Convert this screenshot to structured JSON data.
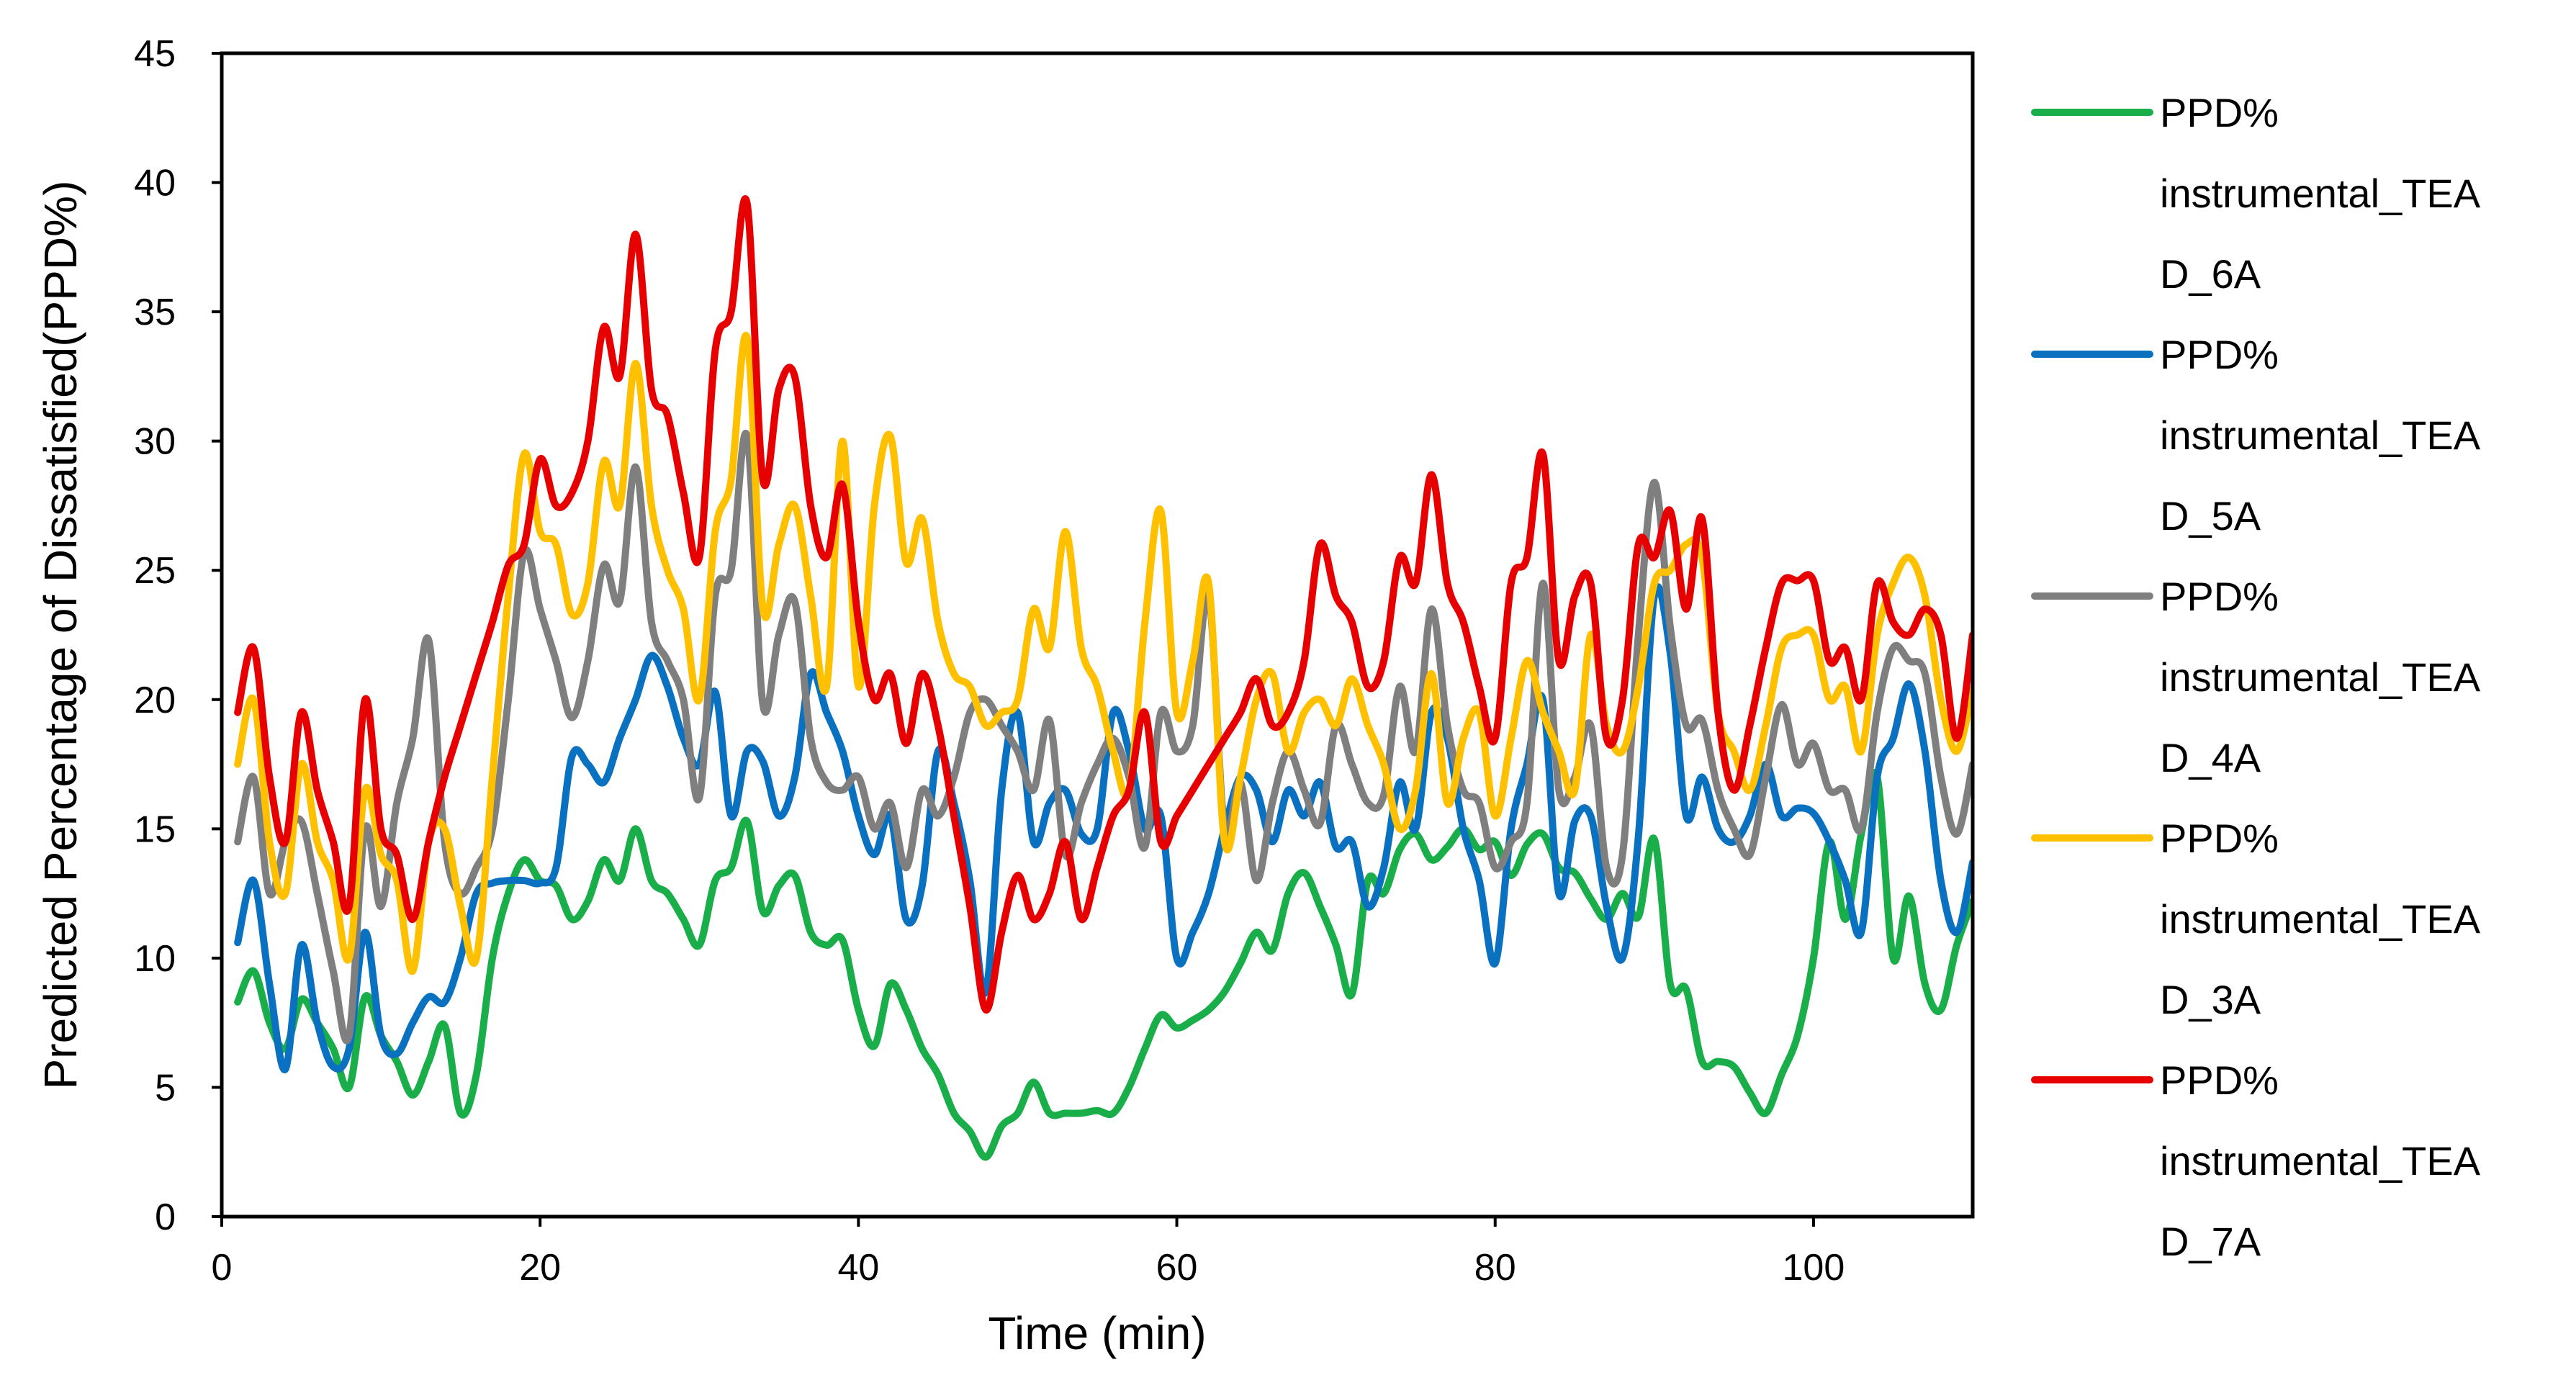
{
  "chart_data": {
    "type": "line",
    "title": "",
    "xlabel": "Time (min)",
    "ylabel": "Predicted Percentage of Dissatisfied(PPD%)",
    "xlim": [
      0,
      110
    ],
    "ylim": [
      0,
      45
    ],
    "xticks": [
      0,
      20,
      40,
      60,
      80,
      100
    ],
    "yticks": [
      0,
      5,
      10,
      15,
      20,
      25,
      30,
      35,
      40,
      45
    ],
    "grid": false,
    "legend_position": "right",
    "series": [
      {
        "name_lines": [
          "PPD%",
          "instrumental_TEA",
          "D_6A"
        ],
        "color": "#1AAE4A",
        "x": [
          1,
          2,
          3,
          4,
          5,
          6,
          7,
          8,
          9,
          10,
          11,
          12,
          13,
          14,
          15,
          16,
          17,
          18,
          19,
          20,
          21,
          22,
          23,
          24,
          25,
          26,
          27,
          28,
          29,
          30,
          31,
          32,
          33,
          34,
          35,
          36,
          37,
          38,
          39,
          40,
          41,
          42,
          43,
          44,
          45,
          46,
          47,
          48,
          49,
          50,
          51,
          52,
          53,
          54,
          55,
          56,
          57,
          58,
          59,
          60,
          61,
          62,
          63,
          64,
          65,
          66,
          67,
          68,
          69,
          70,
          71,
          72,
          73,
          74,
          75,
          76,
          77,
          78,
          79,
          80,
          81,
          82,
          83,
          84,
          85,
          86,
          87,
          88,
          89,
          90,
          91,
          92,
          93,
          94,
          95,
          96,
          97,
          98,
          99,
          100,
          101,
          102,
          103,
          104,
          105,
          106,
          107,
          108,
          109,
          110
        ],
        "values": [
          8.3,
          9.5,
          7.5,
          6.5,
          8.4,
          7.5,
          6.5,
          5.0,
          8.5,
          7.0,
          6.0,
          4.7,
          6.0,
          7.4,
          4.0,
          5.5,
          10.0,
          12.5,
          13.8,
          13.0,
          12.8,
          11.5,
          12.2,
          13.8,
          13.0,
          15.0,
          13.0,
          12.5,
          11.5,
          10.5,
          13.0,
          13.5,
          15.3,
          11.8,
          12.8,
          13.2,
          11.0,
          10.5,
          10.7,
          8.0,
          6.6,
          9.0,
          8.0,
          6.5,
          5.5,
          4.0,
          3.3,
          2.3,
          3.5,
          4.0,
          5.2,
          4.0,
          4.0,
          4.0,
          4.1,
          4.0,
          5.0,
          6.5,
          7.8,
          7.3,
          7.6,
          8.0,
          8.7,
          9.8,
          11.0,
          10.3,
          12.5,
          13.3,
          12.0,
          10.5,
          8.6,
          13.0,
          12.5,
          14.2,
          14.8,
          13.8,
          14.3,
          15.0,
          14.2,
          14.5,
          13.2,
          14.4,
          14.8,
          13.5,
          13.3,
          12.3,
          11.5,
          12.5,
          11.6,
          14.6,
          9.0,
          8.8,
          6.0,
          6.0,
          5.8,
          4.8,
          4.0,
          5.5,
          7.0,
          10.0,
          14.5,
          11.5,
          14.8,
          17.0,
          10.0,
          12.4,
          9.0,
          8.0,
          10.5,
          12.2
        ]
      },
      {
        "name_lines": [
          "PPD%",
          "instrumental_TEA",
          "D_5A"
        ],
        "color": "#0A70C0",
        "x": [
          1,
          2,
          3,
          4,
          5,
          6,
          7,
          8,
          9,
          10,
          11,
          12,
          13,
          14,
          15,
          16,
          17,
          18,
          19,
          20,
          21,
          22,
          23,
          24,
          25,
          26,
          27,
          28,
          29,
          30,
          31,
          32,
          33,
          34,
          35,
          36,
          37,
          38,
          39,
          40,
          41,
          42,
          43,
          44,
          45,
          46,
          47,
          48,
          49,
          50,
          51,
          52,
          53,
          54,
          55,
          56,
          57,
          58,
          59,
          60,
          61,
          62,
          63,
          64,
          65,
          66,
          67,
          68,
          69,
          70,
          71,
          72,
          73,
          74,
          75,
          76,
          77,
          78,
          79,
          80,
          81,
          82,
          83,
          84,
          85,
          86,
          87,
          88,
          89,
          90,
          91,
          92,
          93,
          94,
          95,
          96,
          97,
          98,
          99,
          100,
          101,
          102,
          103,
          104,
          105,
          106,
          107,
          108,
          109,
          110
        ],
        "values": [
          10.6,
          13.0,
          9.0,
          5.7,
          10.5,
          7.5,
          5.8,
          6.5,
          11.0,
          7.0,
          6.3,
          7.5,
          8.5,
          8.3,
          10.0,
          12.5,
          12.9,
          13.0,
          13.0,
          12.9,
          13.5,
          17.8,
          17.5,
          16.8,
          18.5,
          20.0,
          21.7,
          20.5,
          18.5,
          17.5,
          20.3,
          15.5,
          18.0,
          17.6,
          15.5,
          17.0,
          21.0,
          19.5,
          18.0,
          15.5,
          14.0,
          15.5,
          11.5,
          12.8,
          18.0,
          16.0,
          13.0,
          8.7,
          16.5,
          19.5,
          14.5,
          16.0,
          16.5,
          14.8,
          15.0,
          19.5,
          18.0,
          15.0,
          15.5,
          10.0,
          11.0,
          12.5,
          15.0,
          17.0,
          16.5,
          14.5,
          16.5,
          15.5,
          16.8,
          14.3,
          14.5,
          12.0,
          13.5,
          16.8,
          15.0,
          19.5,
          18.5,
          15.0,
          13.0,
          9.8,
          15.0,
          17.5,
          20.0,
          12.5,
          15.3,
          15.5,
          12.0,
          10.0,
          14.7,
          24.0,
          21.8,
          15.5,
          17.0,
          15.0,
          14.5,
          15.5,
          17.5,
          15.5,
          15.8,
          15.6,
          14.5,
          13.0,
          11.0,
          17.0,
          18.5,
          20.6,
          18.0,
          13.0,
          11.0,
          13.7
        ]
      },
      {
        "name_lines": [
          "PPD%",
          "instrumental_TEA",
          "D_4A"
        ],
        "color": "#7F7F7F",
        "x": [
          1,
          2,
          3,
          4,
          5,
          6,
          7,
          8,
          9,
          10,
          11,
          12,
          13,
          14,
          15,
          16,
          17,
          18,
          19,
          20,
          21,
          22,
          23,
          24,
          25,
          26,
          27,
          28,
          29,
          30,
          31,
          32,
          33,
          34,
          35,
          36,
          37,
          38,
          39,
          40,
          41,
          42,
          43,
          44,
          45,
          46,
          47,
          48,
          49,
          50,
          51,
          52,
          53,
          54,
          55,
          56,
          57,
          58,
          59,
          60,
          61,
          62,
          63,
          64,
          65,
          66,
          67,
          68,
          69,
          70,
          71,
          72,
          73,
          74,
          75,
          76,
          77,
          78,
          79,
          80,
          81,
          82,
          83,
          84,
          85,
          86,
          87,
          88,
          89,
          90,
          91,
          92,
          93,
          94,
          95,
          96,
          97,
          98,
          99,
          100,
          101,
          102,
          103,
          104,
          105,
          106,
          107,
          108,
          109,
          110
        ],
        "values": [
          14.5,
          17.0,
          12.5,
          14.5,
          15.3,
          12.5,
          9.5,
          7.0,
          15.0,
          12.0,
          16.0,
          18.5,
          22.3,
          14.5,
          12.5,
          13.5,
          15.0,
          20.0,
          25.7,
          23.5,
          21.5,
          19.3,
          21.5,
          25.2,
          23.8,
          29.0,
          23.0,
          21.5,
          20.0,
          16.2,
          24.0,
          25.0,
          30.2,
          19.8,
          22.5,
          23.8,
          18.5,
          16.8,
          16.5,
          17.0,
          15.0,
          16.0,
          13.5,
          16.5,
          15.5,
          17.0,
          19.5,
          20.0,
          19.0,
          18.0,
          16.5,
          19.2,
          14.0,
          16.0,
          17.5,
          18.5,
          17.0,
          14.3,
          19.5,
          18.0,
          19.0,
          24.0,
          15.0,
          16.8,
          13.0,
          16.0,
          18.0,
          16.5,
          15.2,
          19.0,
          17.5,
          16.0,
          16.3,
          20.5,
          18.0,
          23.5,
          19.0,
          16.5,
          16.0,
          13.5,
          14.5,
          16.0,
          24.5,
          16.5,
          17.0,
          19.0,
          13.5,
          14.0,
          22.5,
          28.4,
          22.8,
          19.0,
          19.2,
          16.5,
          15.0,
          14.0,
          17.0,
          19.8,
          17.5,
          18.3,
          16.5,
          16.5,
          15.0,
          19.5,
          22.0,
          21.5,
          21.0,
          17.0,
          14.8,
          17.5
        ]
      },
      {
        "name_lines": [
          "PPD%",
          "instrumental_TEA",
          "D_3A"
        ],
        "color": "#FFC000",
        "x": [
          1,
          2,
          3,
          4,
          5,
          6,
          7,
          8,
          9,
          10,
          11,
          12,
          13,
          14,
          15,
          16,
          17,
          18,
          19,
          20,
          21,
          22,
          23,
          24,
          25,
          26,
          27,
          28,
          29,
          30,
          31,
          32,
          33,
          34,
          35,
          36,
          37,
          38,
          39,
          40,
          41,
          42,
          43,
          44,
          45,
          46,
          47,
          48,
          49,
          50,
          51,
          52,
          53,
          54,
          55,
          56,
          57,
          58,
          59,
          60,
          61,
          62,
          63,
          64,
          65,
          66,
          67,
          68,
          69,
          70,
          71,
          72,
          73,
          74,
          75,
          76,
          77,
          78,
          79,
          80,
          81,
          82,
          83,
          84,
          85,
          86,
          87,
          88,
          89,
          90,
          91,
          92,
          93,
          94,
          95,
          96,
          97,
          98,
          99,
          100,
          101,
          102,
          103,
          104,
          105,
          106,
          107,
          108,
          109,
          110
        ],
        "values": [
          17.5,
          20.0,
          14.5,
          12.5,
          17.5,
          14.5,
          13.0,
          10.0,
          16.5,
          14.0,
          13.0,
          9.5,
          14.5,
          15.0,
          12.0,
          10.0,
          17.0,
          24.0,
          29.5,
          26.5,
          26.0,
          23.3,
          24.5,
          29.2,
          27.5,
          33.0,
          27.5,
          25.0,
          23.5,
          20.0,
          26.5,
          28.5,
          34.0,
          23.5,
          26.0,
          27.5,
          24.0,
          20.5,
          30.0,
          20.5,
          27.5,
          30.2,
          25.3,
          27.0,
          23.0,
          21.0,
          20.5,
          19.0,
          19.5,
          20.0,
          23.5,
          22.0,
          26.5,
          22.0,
          20.5,
          18.0,
          16.5,
          23.0,
          27.3,
          19.5,
          21.5,
          24.5,
          14.5,
          17.0,
          20.0,
          21.0,
          18.0,
          19.5,
          20.0,
          19.0,
          20.8,
          19.0,
          17.5,
          15.0,
          16.5,
          21.0,
          16.0,
          18.5,
          19.5,
          15.5,
          18.5,
          21.5,
          19.5,
          18.0,
          16.5,
          22.5,
          19.0,
          18.0,
          20.5,
          24.5,
          25.0,
          26.0,
          25.5,
          19.5,
          18.0,
          16.5,
          19.0,
          22.0,
          22.5,
          22.5,
          20.0,
          20.5,
          18.0,
          22.5,
          24.5,
          25.5,
          24.0,
          20.0,
          18.0,
          20.4
        ]
      },
      {
        "name_lines": [
          "PPD%",
          "instrumental_TEA",
          "D_7A"
        ],
        "color": "#E60000",
        "x": [
          1,
          2,
          3,
          4,
          5,
          6,
          7,
          8,
          9,
          10,
          11,
          12,
          13,
          14,
          15,
          16,
          17,
          18,
          19,
          20,
          21,
          22,
          23,
          24,
          25,
          26,
          27,
          28,
          29,
          30,
          31,
          32,
          33,
          34,
          35,
          36,
          37,
          38,
          39,
          40,
          41,
          42,
          43,
          44,
          45,
          46,
          47,
          48,
          49,
          50,
          51,
          52,
          53,
          54,
          55,
          56,
          57,
          58,
          59,
          60,
          61,
          62,
          63,
          64,
          65,
          66,
          67,
          68,
          69,
          70,
          71,
          72,
          73,
          74,
          75,
          76,
          77,
          78,
          79,
          80,
          81,
          82,
          83,
          84,
          85,
          86,
          87,
          88,
          89,
          90,
          91,
          92,
          93,
          94,
          95,
          96,
          97,
          98,
          99,
          100,
          101,
          102,
          103,
          104,
          105,
          106,
          107,
          108,
          109,
          110
        ],
        "values": [
          19.5,
          22.0,
          17.0,
          14.5,
          19.5,
          16.5,
          14.5,
          12.0,
          20.0,
          15.0,
          14.0,
          11.5,
          14.5,
          17.0,
          19.0,
          21.0,
          23.0,
          25.2,
          26.0,
          29.3,
          27.5,
          28.0,
          30.0,
          34.4,
          32.5,
          38.0,
          32.0,
          31.0,
          28.0,
          25.5,
          33.5,
          35.0,
          39.2,
          28.5,
          32.0,
          32.5,
          27.5,
          25.5,
          28.3,
          23.0,
          20.0,
          21.0,
          18.3,
          21.0,
          19.0,
          15.5,
          12.0,
          8.0,
          11.0,
          13.2,
          11.5,
          12.5,
          14.5,
          11.5,
          13.5,
          15.5,
          16.5,
          19.5,
          14.5,
          15.5,
          16.5,
          17.5,
          18.5,
          19.5,
          20.8,
          19.0,
          19.5,
          21.5,
          26.0,
          24.0,
          23.0,
          20.5,
          21.5,
          25.5,
          24.5,
          28.7,
          24.5,
          23.0,
          20.5,
          18.5,
          24.5,
          25.5,
          29.5,
          21.5,
          24.0,
          24.5,
          18.5,
          20.0,
          26.0,
          25.5,
          27.3,
          23.5,
          27.0,
          19.5,
          16.5,
          19.0,
          22.0,
          24.5,
          24.6,
          24.6,
          21.5,
          22.0,
          20.0,
          24.5,
          23.0,
          22.5,
          23.5,
          22.5,
          18.5,
          22.5
        ]
      }
    ]
  }
}
